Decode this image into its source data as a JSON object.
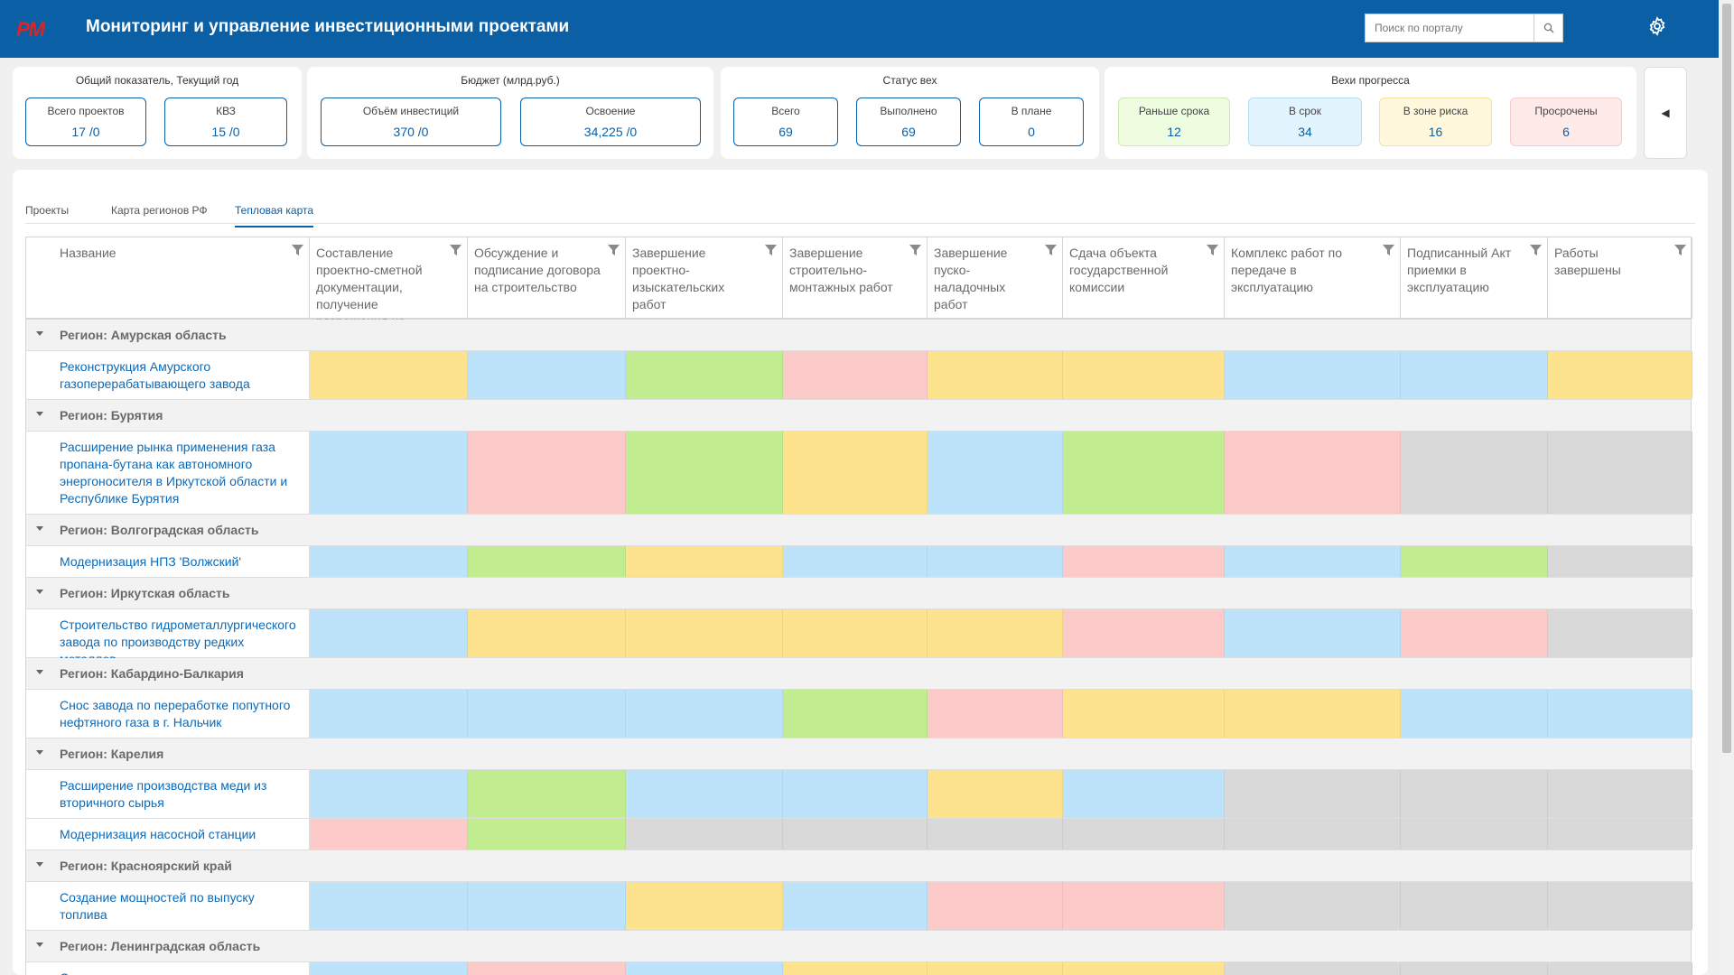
{
  "header": {
    "logo": "PM",
    "title": "Мониторинг и управление инвестиционными проектами",
    "search_placeholder": "Поиск по порталу"
  },
  "kpi": {
    "overall": {
      "title": "Общий показатель, Текущий год",
      "cards": [
        {
          "label": "Всего проектов",
          "value": "17 /0"
        },
        {
          "label": "КВЗ",
          "value": "15 /0"
        }
      ]
    },
    "budget": {
      "title": "Бюджет (млрд.руб.)",
      "cards": [
        {
          "label": "Объём инвестиций",
          "value": "370 /0"
        },
        {
          "label": "Освоение",
          "value": "34,225 /0"
        }
      ]
    },
    "status": {
      "title": "Статус вех",
      "cards": [
        {
          "label": "Всего",
          "value": "69"
        },
        {
          "label": "Выполнено",
          "value": "69"
        },
        {
          "label": "В плане",
          "value": "0"
        }
      ]
    },
    "progress": {
      "title": "Вехи прогресса",
      "cards": [
        {
          "label": "Раньше срока",
          "value": "12"
        },
        {
          "label": "В срок",
          "value": "34"
        },
        {
          "label": "В зоне риска",
          "value": "16"
        },
        {
          "label": "Просрочены",
          "value": "6"
        }
      ]
    }
  },
  "tabs": [
    {
      "label": "Проекты"
    },
    {
      "label": "Карта регионов РФ"
    },
    {
      "label": "Тепловая карта",
      "active": true
    }
  ],
  "columns": [
    "Название",
    "Составление проектно-сметной документации, получение разрешения на строительство",
    "Обсуждение и подписание договора на строительство",
    "Завершение проектно-изыскательских работ",
    "Завершение строительно-монтажных работ",
    "Завершение пуско-наладочных работ",
    "Сдача объекта государственной комиссии",
    "Комплекс работ по передаче в эксплуатацию",
    "Подписанный Акт приемки в эксплуатацию",
    "Работы завершены"
  ],
  "status_colors": {
    "y": "#fde38e",
    "b": "#bde3fb",
    "g": "#c2ec90",
    "r": "#fdcaca",
    "x": "#d9d9d9"
  },
  "groups": [
    {
      "region": "Регион: Амурская область",
      "projects": [
        {
          "name": "Реконструкция Амурского газоперерабатывающего завода",
          "cells": "ybgryybby"
        }
      ]
    },
    {
      "region": "Регион: Бурятия",
      "projects": [
        {
          "name": "Расширение рынка применения газа пропана-бутана как автономного энергоносителя в Иркутской области и Республике Бурятия",
          "cells": "brgybgrxx"
        }
      ]
    },
    {
      "region": "Регион: Волгоградская область",
      "projects": [
        {
          "name": "Модернизация НПЗ 'Волжский'",
          "cells": "bgybbrbgx"
        }
      ]
    },
    {
      "region": "Регион: Иркутская область",
      "projects": [
        {
          "name": "Строительство гидрометаллургического завода по производству редких металлов",
          "cells": "byyyyrbrx"
        }
      ]
    },
    {
      "region": "Регион: Кабардино-Балкария",
      "projects": [
        {
          "name": "Снос завода по переработке попутного нефтяного газа в г. Нальчик",
          "cells": "bbbgryybb"
        }
      ]
    },
    {
      "region": "Регион: Карелия",
      "projects": [
        {
          "name": "Расширение производства меди из вторичного сырья",
          "cells": "bgbbybxxx"
        },
        {
          "name": "Модернизация насосной станции",
          "cells": "rgxxxxxxx"
        }
      ]
    },
    {
      "region": "Регион: Красноярский край",
      "projects": [
        {
          "name": "Создание мощностей по выпуску топлива",
          "cells": "bbybrrxxx"
        }
      ]
    },
    {
      "region": "Регион: Ленинградская область",
      "projects": [
        {
          "name": "Строительство",
          "cells": "brbyyyxxx"
        }
      ]
    }
  ]
}
